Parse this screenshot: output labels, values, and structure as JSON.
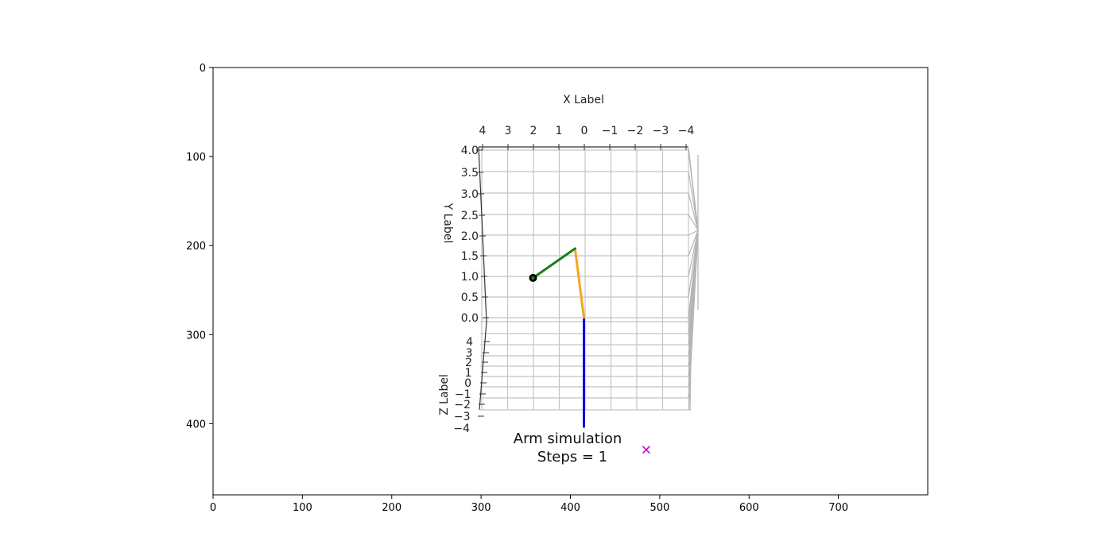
{
  "chart_data": {
    "type": "scatter",
    "outer_axes": {
      "x_ticks": [
        0,
        100,
        200,
        300,
        400,
        500,
        600,
        700
      ],
      "y_ticks": [
        0,
        100,
        200,
        300,
        400
      ],
      "xlim": [
        0,
        800
      ],
      "ylim": [
        480,
        0
      ]
    },
    "title_lines": [
      "Arm simulation",
      "Steps = 1"
    ],
    "inner_3d": {
      "xlabel": "X Label",
      "ylabel": "Y Label",
      "zlabel": "Z Label",
      "x_ticks": [
        "4",
        "3",
        "2",
        "1",
        "0",
        "−1",
        "−2",
        "−3",
        "−4"
      ],
      "y_ticks": [
        "0.0",
        "0.5",
        "1.0",
        "1.5",
        "2.0",
        "2.5",
        "3.0",
        "3.5",
        "4.0"
      ],
      "z_ticks": [
        "4",
        "3",
        "2",
        "1",
        "0",
        "−1",
        "−2",
        "−3",
        "−4"
      ],
      "xlim": [
        4,
        -4
      ],
      "ylim": [
        0,
        4
      ],
      "zlim": [
        -4,
        4
      ]
    },
    "arm_segments": [
      {
        "color": "#0000dd",
        "from": [
          0,
          -2.6
        ],
        "to": [
          0,
          0.0
        ]
      },
      {
        "color": "#f5a623",
        "from": [
          0,
          0.0
        ],
        "to": [
          0.35,
          1.65
        ]
      },
      {
        "color": "#1a7f1a",
        "from": [
          0.35,
          1.65
        ],
        "to": [
          2.0,
          0.95
        ]
      }
    ],
    "end_effector": {
      "x": 2.0,
      "y": 0.95,
      "color": "#000000"
    },
    "target": {
      "x": -2.45,
      "y": -3.15,
      "marker": "x",
      "color": "#cc00cc"
    }
  }
}
